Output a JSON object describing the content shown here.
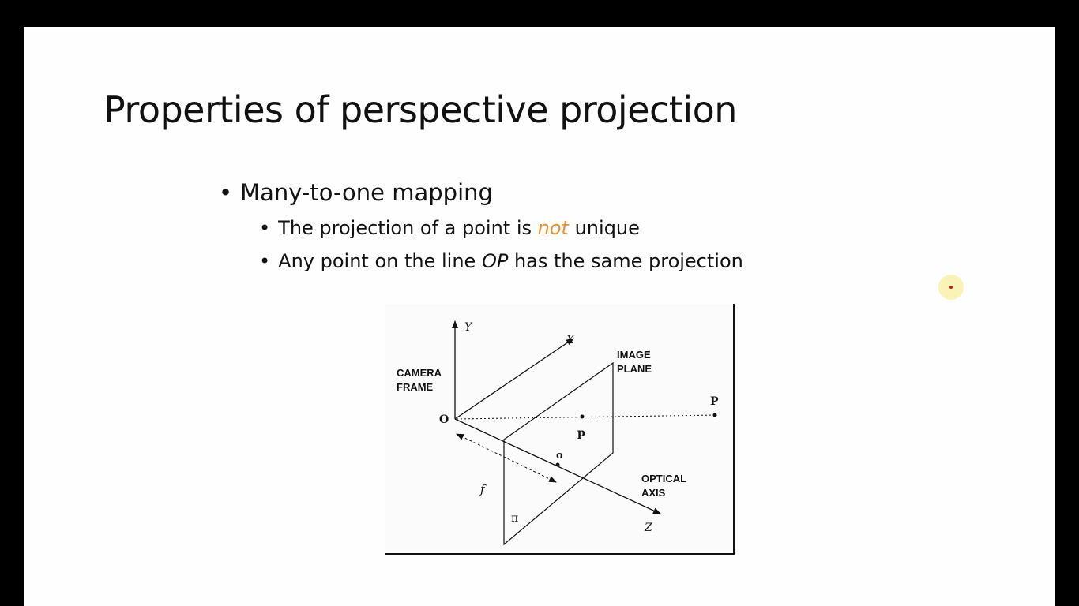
{
  "slide": {
    "title": "Properties of perspective projection",
    "bullet_main": "Many-to-one mapping",
    "sub_bullet_1": {
      "before": "The projection of a point is ",
      "emph": "not",
      "after": " unique"
    },
    "sub_bullet_2": {
      "before": "Any point on the line ",
      "emph": "OP",
      "after": " has the same projection"
    }
  },
  "figure": {
    "label_y": "Y",
    "label_x": "X",
    "label_camera_1": "CAMERA",
    "label_camera_2": "FRAME",
    "label_image_1": "IMAGE",
    "label_image_2": "PLANE",
    "label_O": "O",
    "label_P": "P",
    "label_p": "p",
    "label_o": "o",
    "label_f": "f",
    "label_optical_1": "OPTICAL",
    "label_optical_2": "AXIS",
    "label_pi": "π",
    "label_z": "Z"
  },
  "colors": {
    "accent": "#e8902f",
    "background": "#fefefe",
    "frame": "#000000"
  }
}
